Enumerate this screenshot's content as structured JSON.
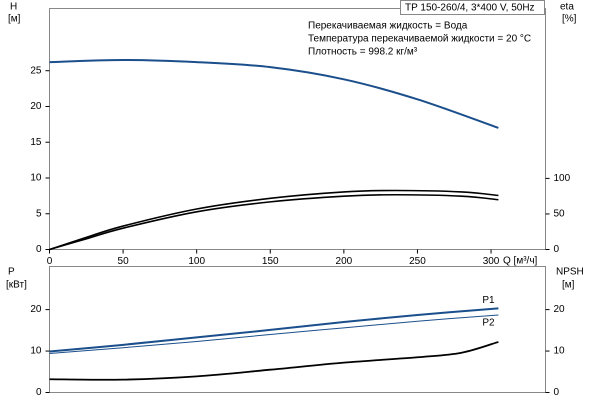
{
  "chart_data": [
    {
      "type": "line",
      "title": "TP 150-260/4, 3*400 V, 50Hz",
      "annotations": [
        "Перекачиваемая жидкость = Вода",
        "Температура перекачиваемой жидкости = 20 °C",
        "Плотность = 998.2 кг/м³"
      ],
      "y_label": "H",
      "y_unit": "[м]",
      "y2_label": "eta",
      "y2_unit": "[%]",
      "x_label": "Q [м³/ч]",
      "xlim": [
        0,
        337
      ],
      "xticks": [
        0,
        50,
        100,
        150,
        200,
        250,
        300
      ],
      "ylim": [
        0,
        33.7
      ],
      "yticks": [
        0,
        5,
        10,
        15,
        20,
        25
      ],
      "y2lim": [
        0,
        339
      ],
      "y2ticks": [
        0,
        50,
        100
      ],
      "series": [
        {
          "color": "#1b4f8c",
          "x": [
            0,
            50,
            100,
            150,
            200,
            250,
            305
          ],
          "values": [
            26.2,
            26.5,
            26.2,
            25.5,
            23.8,
            21.0,
            17.0
          ]
        },
        {
          "color": "#000000",
          "axis": "y2",
          "x": [
            0,
            25,
            50,
            100,
            150,
            200,
            235,
            280,
            305
          ],
          "values": [
            0,
            17,
            33,
            57,
            72,
            81,
            83,
            81,
            76
          ]
        },
        {
          "color": "#000000",
          "axis": "y2",
          "x": [
            0,
            25,
            50,
            100,
            150,
            200,
            235,
            280,
            305
          ],
          "values": [
            0,
            15,
            30,
            53,
            67,
            75,
            77,
            75,
            70
          ]
        }
      ]
    },
    {
      "type": "line",
      "y_label": "P",
      "y_unit": "[кВт]",
      "y2_label": "NPSH",
      "y2_unit": "[м]",
      "xlim": [
        0,
        337
      ],
      "ylim": [
        0,
        30.4
      ],
      "yticks": [
        0,
        10,
        20
      ],
      "y2lim": [
        0,
        30.4
      ],
      "y2ticks": [
        0,
        10,
        20
      ],
      "series": [
        {
          "name": "P1",
          "color": "#1b4f8c",
          "x": [
            0,
            50,
            100,
            150,
            200,
            250,
            305
          ],
          "values": [
            9.9,
            11.5,
            13.3,
            15.1,
            17.0,
            18.7,
            20.3
          ]
        },
        {
          "name": "P2",
          "color": "#1b4f8c",
          "x": [
            0,
            50,
            100,
            150,
            200,
            250,
            305
          ],
          "values": [
            9.4,
            10.8,
            12.3,
            14.0,
            15.6,
            17.2,
            18.7
          ]
        },
        {
          "color": "#000000",
          "axis": "y2",
          "x": [
            0,
            50,
            100,
            150,
            200,
            250,
            280,
            305
          ],
          "values": [
            3.2,
            3.1,
            3.9,
            5.5,
            7.2,
            8.5,
            9.6,
            12.2
          ]
        }
      ]
    }
  ]
}
